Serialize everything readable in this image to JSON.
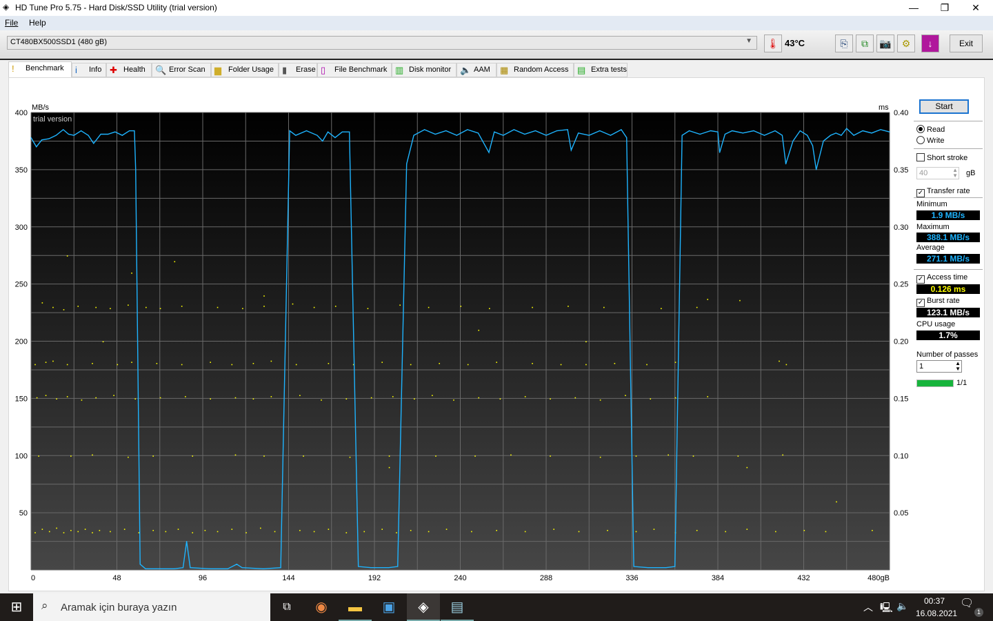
{
  "window": {
    "title": "HD Tune Pro 5.75 - Hard Disk/SSD Utility (trial version)",
    "minimize": "—",
    "maximize": "❐",
    "close": "✕"
  },
  "menu": [
    "File",
    "Help"
  ],
  "toolbar": {
    "drive": "CT480BX500SSD1 (480 gB)",
    "temperature": "43°C",
    "exit_label": "Exit",
    "icons": [
      "copy-text-icon",
      "copy-image-icon",
      "screenshot-camera-icon",
      "options-gears-icon",
      "download-icon"
    ]
  },
  "tabs": [
    {
      "label": "Benchmark",
      "icon": "benchmark-icon"
    },
    {
      "label": "Info",
      "icon": "info-icon"
    },
    {
      "label": "Health",
      "icon": "health-cross-icon"
    },
    {
      "label": "Error Scan",
      "icon": "magnifier-icon"
    },
    {
      "label": "Folder Usage",
      "icon": "folder-icon"
    },
    {
      "label": "Erase",
      "icon": "trash-icon"
    },
    {
      "label": "File Benchmark",
      "icon": "file-benchmark-icon"
    },
    {
      "label": "Disk monitor",
      "icon": "disk-monitor-icon"
    },
    {
      "label": "AAM",
      "icon": "speaker-icon"
    },
    {
      "label": "Random Access",
      "icon": "random-access-icon"
    },
    {
      "label": "Extra tests",
      "icon": "extra-tests-icon"
    }
  ],
  "side": {
    "start": "Start",
    "read": "Read",
    "write": "Write",
    "mode": "Read",
    "short_stroke": "Short stroke",
    "short_stroke_checked": false,
    "stroke_value": "40",
    "stroke_unit": "gB",
    "transfer_rate": "Transfer rate",
    "min_label": "Minimum",
    "min": "1.9 MB/s",
    "max_label": "Maximum",
    "max": "388.1 MB/s",
    "avg_label": "Average",
    "avg": "271.1 MB/s",
    "access_time": "Access time",
    "access": "0.126 ms",
    "burst_label": "Burst rate",
    "burst": "123.1 MB/s",
    "cpu_label": "CPU usage",
    "cpu": "1.7%",
    "passes_label": "Number of passes",
    "passes": "1",
    "progress_text": "1/1",
    "progress": 1.0,
    "colors": {
      "transfer": "#1eb4ff",
      "access": "#ffff00",
      "progress": "#17b43c"
    }
  },
  "chart_data": {
    "type": "line",
    "watermark": "trial version",
    "ylabel_left": "MB/s",
    "ylabel_right": "ms",
    "xunit": "gB",
    "xlim": [
      0,
      480
    ],
    "ylim": [
      0,
      400
    ],
    "y2lim": [
      0,
      0.4
    ],
    "xticks": [
      "0",
      "48",
      "96",
      "144",
      "192",
      "240",
      "288",
      "336",
      "384",
      "432",
      "480gB"
    ],
    "yticks": [
      "50",
      "100",
      "150",
      "200",
      "250",
      "300",
      "350",
      "400"
    ],
    "y2ticks": [
      "0.05",
      "0.10",
      "0.15",
      "0.20",
      "0.25",
      "0.30",
      "0.35",
      "0.40"
    ],
    "grid": true,
    "series": [
      {
        "kind": "transfer-rate",
        "color": "#1eb4ff",
        "points": [
          [
            0,
            378
          ],
          [
            3,
            370
          ],
          [
            6,
            376
          ],
          [
            10,
            377
          ],
          [
            14,
            380
          ],
          [
            18,
            385
          ],
          [
            21,
            381
          ],
          [
            24,
            380
          ],
          [
            28,
            384
          ],
          [
            32,
            380
          ],
          [
            35,
            373
          ],
          [
            39,
            381
          ],
          [
            43,
            381
          ],
          [
            47,
            383
          ],
          [
            51,
            380
          ],
          [
            55,
            384
          ],
          [
            57.8,
            384
          ],
          [
            58.5,
            350
          ],
          [
            61,
            5
          ],
          [
            64,
            1
          ],
          [
            70,
            1
          ],
          [
            80,
            1
          ],
          [
            85,
            2
          ],
          [
            87,
            25
          ],
          [
            89,
            2
          ],
          [
            100,
            1
          ],
          [
            110,
            1
          ],
          [
            115,
            5
          ],
          [
            118,
            2
          ],
          [
            130,
            1
          ],
          [
            139.6,
            2
          ],
          [
            144.6,
            384
          ],
          [
            148,
            380
          ],
          [
            154,
            384
          ],
          [
            160,
            380
          ],
          [
            163,
            375
          ],
          [
            166,
            383
          ],
          [
            170,
            378
          ],
          [
            174,
            383
          ],
          [
            178,
            383
          ],
          [
            183,
            3
          ],
          [
            190,
            2
          ],
          [
            200,
            2
          ],
          [
            205,
            3
          ],
          [
            210,
            355
          ],
          [
            214,
            380
          ],
          [
            220,
            385
          ],
          [
            226,
            381
          ],
          [
            232,
            384
          ],
          [
            238,
            380
          ],
          [
            244,
            385
          ],
          [
            250,
            382
          ],
          [
            256,
            365
          ],
          [
            259,
            383
          ],
          [
            264,
            380
          ],
          [
            270,
            385
          ],
          [
            276,
            381
          ],
          [
            282,
            384
          ],
          [
            288,
            380
          ],
          [
            294,
            384
          ],
          [
            300,
            385
          ],
          [
            302,
            367
          ],
          [
            306,
            382
          ],
          [
            312,
            380
          ],
          [
            318,
            384
          ],
          [
            324,
            380
          ],
          [
            330,
            385
          ],
          [
            333,
            378
          ],
          [
            337,
            3
          ],
          [
            345,
            2
          ],
          [
            355,
            2
          ],
          [
            360,
            3
          ],
          [
            364,
            380
          ],
          [
            368,
            384
          ],
          [
            374,
            381
          ],
          [
            380,
            384
          ],
          [
            384,
            383
          ],
          [
            385,
            365
          ],
          [
            388,
            381
          ],
          [
            392,
            384
          ],
          [
            398,
            382
          ],
          [
            404,
            384
          ],
          [
            410,
            380
          ],
          [
            416,
            384
          ],
          [
            420,
            380
          ],
          [
            422,
            355
          ],
          [
            426,
            375
          ],
          [
            430,
            384
          ],
          [
            434,
            380
          ],
          [
            437,
            371
          ],
          [
            439,
            350
          ],
          [
            443,
            375
          ],
          [
            447,
            380
          ],
          [
            450,
            382
          ],
          [
            453,
            380
          ],
          [
            456,
            386
          ],
          [
            460,
            380
          ],
          [
            465,
            384
          ],
          [
            470,
            382
          ],
          [
            475,
            385
          ],
          [
            480,
            383
          ]
        ]
      },
      {
        "kind": "access-time",
        "color": "#ffff00",
        "type": "scatter",
        "points": [
          [
            2,
            0.033
          ],
          [
            6,
            0.036
          ],
          [
            10,
            0.034
          ],
          [
            14,
            0.037
          ],
          [
            18,
            0.033
          ],
          [
            22,
            0.035
          ],
          [
            26,
            0.034
          ],
          [
            30,
            0.036
          ],
          [
            34,
            0.033
          ],
          [
            38,
            0.035
          ],
          [
            44,
            0.034
          ],
          [
            52,
            0.036
          ],
          [
            60,
            0.033
          ],
          [
            68,
            0.035
          ],
          [
            75,
            0.034
          ],
          [
            82,
            0.036
          ],
          [
            90,
            0.033
          ],
          [
            97,
            0.035
          ],
          [
            104,
            0.034
          ],
          [
            112,
            0.036
          ],
          [
            120,
            0.033
          ],
          [
            128,
            0.037
          ],
          [
            136,
            0.034
          ],
          [
            150,
            0.035
          ],
          [
            158,
            0.034
          ],
          [
            166,
            0.036
          ],
          [
            176,
            0.033
          ],
          [
            186,
            0.034
          ],
          [
            196,
            0.036
          ],
          [
            204,
            0.033
          ],
          [
            212,
            0.035
          ],
          [
            222,
            0.034
          ],
          [
            232,
            0.036
          ],
          [
            246,
            0.034
          ],
          [
            260,
            0.035
          ],
          [
            276,
            0.034
          ],
          [
            292,
            0.036
          ],
          [
            306,
            0.034
          ],
          [
            322,
            0.035
          ],
          [
            338,
            0.034
          ],
          [
            348,
            0.036
          ],
          [
            360,
            0.033
          ],
          [
            372,
            0.035
          ],
          [
            388,
            0.034
          ],
          [
            400,
            0.036
          ],
          [
            416,
            0.034
          ],
          [
            432,
            0.035
          ],
          [
            444,
            0.034
          ],
          [
            470,
            0.035
          ],
          [
            4,
            0.1
          ],
          [
            22,
            0.1
          ],
          [
            34,
            0.101
          ],
          [
            54,
            0.099
          ],
          [
            68,
            0.1
          ],
          [
            90,
            0.1
          ],
          [
            114,
            0.101
          ],
          [
            130,
            0.1
          ],
          [
            152,
            0.1
          ],
          [
            178,
            0.099
          ],
          [
            200,
            0.1
          ],
          [
            226,
            0.1
          ],
          [
            248,
            0.1
          ],
          [
            268,
            0.101
          ],
          [
            290,
            0.1
          ],
          [
            318,
            0.099
          ],
          [
            338,
            0.1
          ],
          [
            356,
            0.101
          ],
          [
            370,
            0.1
          ],
          [
            395,
            0.1
          ],
          [
            420,
            0.101
          ],
          [
            3,
            0.151
          ],
          [
            8,
            0.153
          ],
          [
            14,
            0.15
          ],
          [
            20,
            0.152
          ],
          [
            28,
            0.149
          ],
          [
            36,
            0.151
          ],
          [
            46,
            0.153
          ],
          [
            58,
            0.15
          ],
          [
            72,
            0.151
          ],
          [
            86,
            0.152
          ],
          [
            100,
            0.15
          ],
          [
            114,
            0.151
          ],
          [
            124,
            0.15
          ],
          [
            134,
            0.152
          ],
          [
            150,
            0.153
          ],
          [
            162,
            0.149
          ],
          [
            176,
            0.15
          ],
          [
            190,
            0.151
          ],
          [
            202,
            0.152
          ],
          [
            214,
            0.15
          ],
          [
            224,
            0.153
          ],
          [
            236,
            0.149
          ],
          [
            250,
            0.151
          ],
          [
            262,
            0.15
          ],
          [
            276,
            0.152
          ],
          [
            290,
            0.15
          ],
          [
            304,
            0.151
          ],
          [
            318,
            0.149
          ],
          [
            332,
            0.153
          ],
          [
            346,
            0.15
          ],
          [
            360,
            0.151
          ],
          [
            378,
            0.152
          ],
          [
            2,
            0.18
          ],
          [
            8,
            0.182
          ],
          [
            12,
            0.183
          ],
          [
            20,
            0.18
          ],
          [
            34,
            0.181
          ],
          [
            48,
            0.18
          ],
          [
            56,
            0.182
          ],
          [
            70,
            0.181
          ],
          [
            84,
            0.18
          ],
          [
            100,
            0.182
          ],
          [
            112,
            0.18
          ],
          [
            124,
            0.181
          ],
          [
            134,
            0.183
          ],
          [
            148,
            0.18
          ],
          [
            166,
            0.181
          ],
          [
            180,
            0.18
          ],
          [
            196,
            0.182
          ],
          [
            212,
            0.18
          ],
          [
            228,
            0.181
          ],
          [
            244,
            0.18
          ],
          [
            260,
            0.182
          ],
          [
            280,
            0.181
          ],
          [
            296,
            0.18
          ],
          [
            310,
            0.18
          ],
          [
            326,
            0.181
          ],
          [
            344,
            0.18
          ],
          [
            360,
            0.182
          ],
          [
            418,
            0.183
          ],
          [
            422,
            0.18
          ],
          [
            6,
            0.234
          ],
          [
            12,
            0.23
          ],
          [
            18,
            0.228
          ],
          [
            26,
            0.231
          ],
          [
            36,
            0.23
          ],
          [
            44,
            0.229
          ],
          [
            54,
            0.232
          ],
          [
            64,
            0.23
          ],
          [
            72,
            0.229
          ],
          [
            84,
            0.231
          ],
          [
            104,
            0.23
          ],
          [
            118,
            0.229
          ],
          [
            130,
            0.231
          ],
          [
            146,
            0.233
          ],
          [
            158,
            0.23
          ],
          [
            170,
            0.231
          ],
          [
            188,
            0.229
          ],
          [
            206,
            0.232
          ],
          [
            222,
            0.23
          ],
          [
            240,
            0.231
          ],
          [
            256,
            0.229
          ],
          [
            280,
            0.23
          ],
          [
            300,
            0.231
          ],
          [
            320,
            0.23
          ],
          [
            352,
            0.229
          ],
          [
            372,
            0.23
          ],
          [
            378,
            0.237
          ],
          [
            396,
            0.236
          ],
          [
            20,
            0.275
          ],
          [
            56,
            0.26
          ],
          [
            80,
            0.27
          ],
          [
            40,
            0.2
          ],
          [
            130,
            0.24
          ],
          [
            250,
            0.21
          ],
          [
            310,
            0.2
          ],
          [
            400,
            0.09
          ],
          [
            450,
            0.06
          ],
          [
            200,
            0.09
          ]
        ]
      }
    ]
  },
  "taskbar": {
    "search_placeholder": "Aramak için buraya yazın",
    "time": "00:37",
    "date": "16.08.2021",
    "notifications": "1"
  }
}
